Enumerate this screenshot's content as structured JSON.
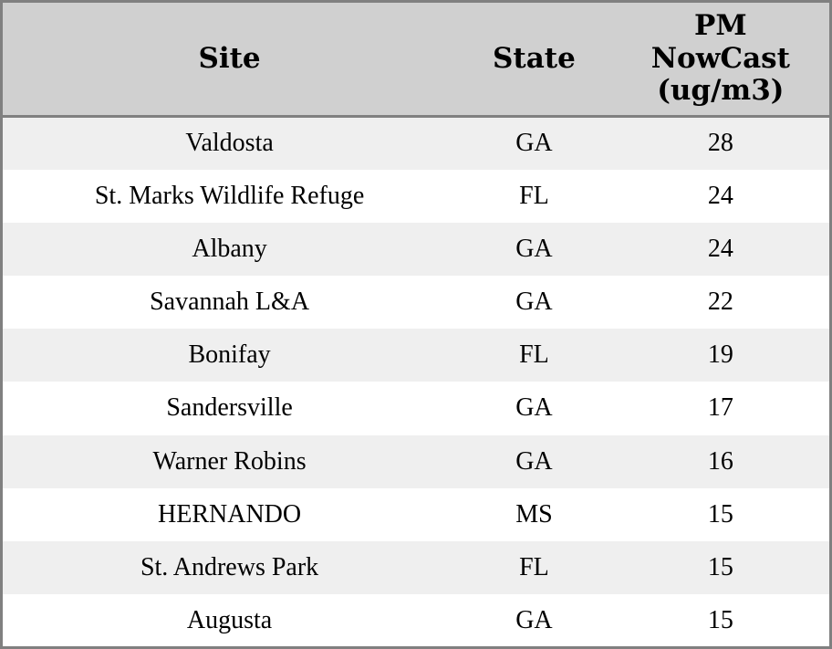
{
  "chart_data": {
    "type": "table",
    "title": "",
    "columns": [
      "Site",
      "State",
      "PM NowCast (ug/m3)"
    ],
    "rows": [
      [
        "Valdosta",
        "GA",
        28
      ],
      [
        "St. Marks Wildlife Refuge",
        "FL",
        24
      ],
      [
        "Albany",
        "GA",
        24
      ],
      [
        "Savannah L&A",
        "GA",
        22
      ],
      [
        "Bonifay",
        "FL",
        19
      ],
      [
        "Sandersville",
        "GA",
        17
      ],
      [
        "Warner Robins",
        "GA",
        16
      ],
      [
        "HERNANDO",
        "MS",
        15
      ],
      [
        "St. Andrews Park",
        "FL",
        15
      ],
      [
        "Augusta",
        "GA",
        15
      ]
    ],
    "layout": {
      "striped": true,
      "header_position": "top",
      "column_alignment": [
        "center",
        "center",
        "center"
      ]
    }
  },
  "colors": {
    "header_bg": "#d0d0d0",
    "stripe_row_bg": "#efefef",
    "plain_row_bg": "#ffffff",
    "border": "#808080",
    "text": "#000000"
  }
}
